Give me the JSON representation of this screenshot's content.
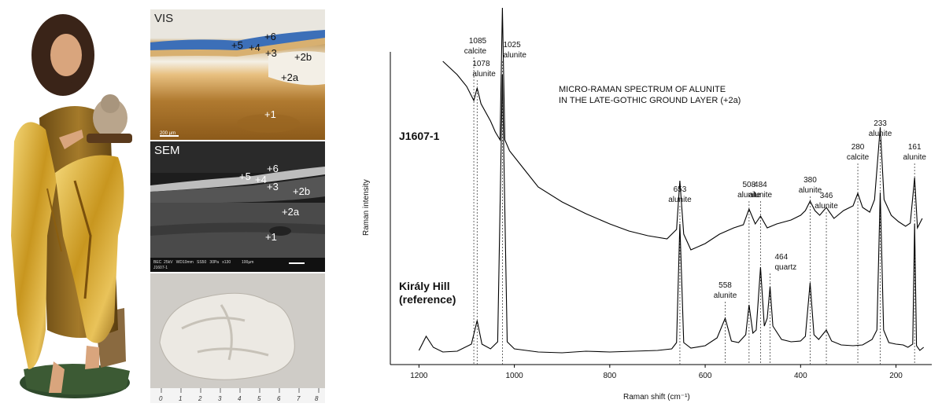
{
  "figure": {
    "vis_panel": {
      "title": "VIS",
      "scalebar": "200 µm",
      "layers": [
        "+6",
        "+5",
        "+4",
        "+3",
        "+2b",
        "+2a",
        "+1"
      ]
    },
    "sem_panel": {
      "title": "SEM",
      "info_line1": "BEC  25kV   WD10mm   SS50   30Pa   x130          100µm",
      "info_line2": "J1607-1",
      "layers": [
        "+6",
        "+5",
        "+4",
        "+3",
        "+2b",
        "+2a",
        "+1"
      ]
    },
    "ruler": {
      "numbers": [
        "0",
        "1",
        "2",
        "3",
        "4",
        "5",
        "6",
        "7",
        "8"
      ]
    }
  },
  "chart_data": {
    "type": "line",
    "title": "MICRO-RAMAN SPECTRUM OF ALUNITE",
    "subtitle": "IN THE LATE-GOTHIC GROUND LAYER (+2a)",
    "xlabel": "Raman shift (cm⁻¹)",
    "ylabel": "Raman intensity",
    "xlim": [
      1260,
      125
    ],
    "x_reversed": true,
    "xticks": [
      "1200",
      "1000",
      "800",
      "600",
      "400",
      "200"
    ],
    "series": [
      {
        "name": "J1607-1",
        "x": [
          1150,
          1120,
          1100,
          1085,
          1078,
          1070,
          1050,
          1040,
          1030,
          1025,
          1020,
          1010,
          980,
          950,
          900,
          850,
          800,
          760,
          720,
          680,
          660,
          653,
          645,
          630,
          600,
          570,
          540,
          520,
          508,
          495,
          484,
          470,
          450,
          420,
          400,
          390,
          380,
          370,
          360,
          346,
          330,
          310,
          290,
          280,
          270,
          255,
          245,
          233,
          225,
          210,
          195,
          180,
          170,
          161,
          155,
          145
        ],
        "y": [
          372,
          355,
          340,
          322,
          338,
          318,
          296,
          282,
          272,
          440,
          272,
          258,
          235,
          212,
          193,
          178,
          165,
          156,
          150,
          146,
          158,
          220,
          152,
          132,
          140,
          152,
          160,
          164,
          184,
          165,
          175,
          160,
          165,
          170,
          176,
          182,
          194,
          182,
          176,
          186,
          172,
          182,
          188,
          204,
          186,
          180,
          196,
          288,
          196,
          176,
          168,
          162,
          166,
          224,
          160,
          172
        ]
      },
      {
        "name": "Király Hill\n(reference)",
        "x": [
          1200,
          1185,
          1170,
          1150,
          1120,
          1090,
          1078,
          1068,
          1050,
          1035,
          1025,
          1015,
          1000,
          950,
          900,
          850,
          800,
          750,
          700,
          670,
          660,
          653,
          645,
          630,
          600,
          575,
          558,
          545,
          530,
          515,
          508,
          500,
          493,
          484,
          476,
          470,
          464,
          458,
          440,
          420,
          400,
          390,
          380,
          372,
          362,
          346,
          335,
          315,
          290,
          270,
          250,
          240,
          233,
          226,
          215,
          200,
          185,
          175,
          165,
          161,
          157,
          150,
          142
        ],
        "y": [
          4,
          22,
          8,
          2,
          3,
          12,
          42,
          12,
          6,
          15,
          355,
          15,
          6,
          2,
          1,
          3,
          2,
          3,
          4,
          6,
          14,
          165,
          14,
          7,
          10,
          20,
          45,
          16,
          14,
          24,
          62,
          26,
          30,
          110,
          35,
          45,
          85,
          35,
          18,
          15,
          16,
          22,
          90,
          24,
          18,
          30,
          16,
          11,
          10,
          11,
          18,
          30,
          205,
          30,
          14,
          12,
          11,
          8,
          12,
          165,
          10,
          4,
          8
        ]
      }
    ],
    "peaks_top": [
      {
        "pos": 1085,
        "label1": "1085",
        "label2": "calcite"
      },
      {
        "pos": 1078,
        "label1": "1078",
        "label2": "alunite"
      },
      {
        "pos": 1025,
        "label1": "1025",
        "label2": "alunite"
      },
      {
        "pos": 653,
        "label1": "653",
        "label2": "alunite"
      },
      {
        "pos": 508,
        "label1": "508",
        "label2": "alunite"
      },
      {
        "pos": 484,
        "label1": "484",
        "label2": "alunite"
      },
      {
        "pos": 380,
        "label1": "380",
        "label2": "alunite"
      },
      {
        "pos": 346,
        "label1": "346",
        "label2": "alunite"
      },
      {
        "pos": 280,
        "label1": "280",
        "label2": "calcite"
      },
      {
        "pos": 233,
        "label1": "233",
        "label2": "alunite"
      },
      {
        "pos": 161,
        "label1": "161",
        "label2": "alunite"
      }
    ],
    "peaks_bottom": [
      {
        "pos": 558,
        "label1": "558",
        "label2": "alunite"
      },
      {
        "pos": 464,
        "label1": "464",
        "label2": "quartz"
      }
    ]
  }
}
